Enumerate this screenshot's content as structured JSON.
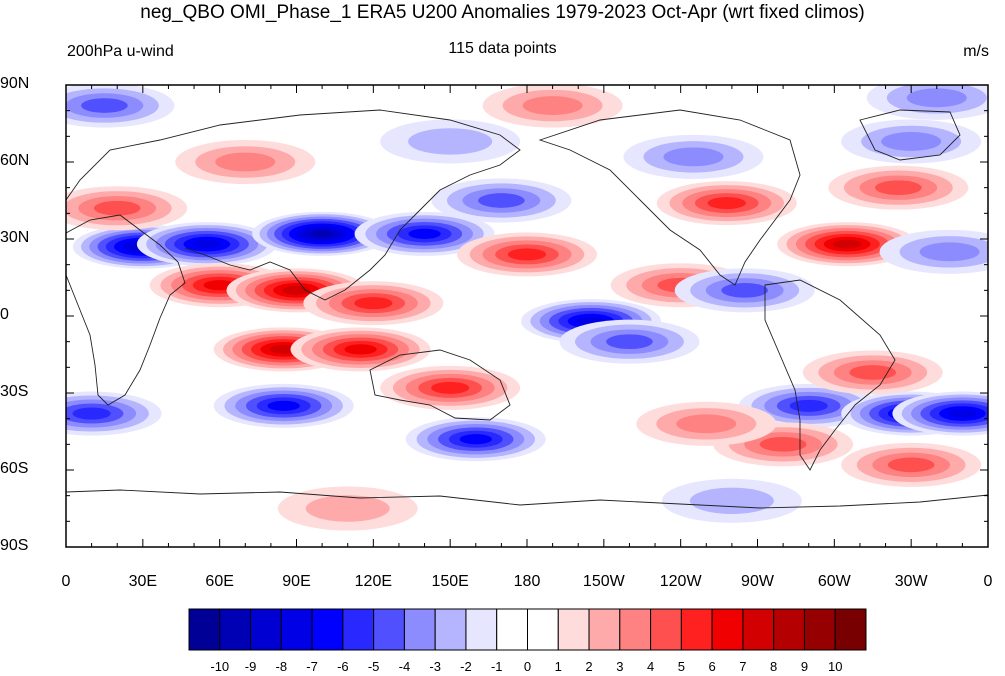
{
  "title": "neg_QBO OMI_Phase_1 ERA5 U200 Anomalies 1979-2023 Oct-Apr (wrt fixed climos)",
  "left_label": "200hPa u-wind",
  "center_label": "115 data points",
  "right_label": "m/s",
  "map": {
    "projection": "cylindrical-equidistant",
    "lon_range": [
      0,
      360
    ],
    "lat_range": [
      -90,
      90
    ],
    "lat_labels": [
      "90N",
      "60N",
      "30N",
      "0",
      "30S",
      "60S",
      "90S"
    ],
    "lon_labels": [
      "0",
      "30E",
      "60E",
      "90E",
      "120E",
      "150E",
      "180",
      "150W",
      "120W",
      "90W",
      "60W",
      "30W",
      "0"
    ],
    "anomaly_features": [
      {
        "lon": 30,
        "lat": 27,
        "value": -8
      },
      {
        "lon": 55,
        "lat": 28,
        "value": -7
      },
      {
        "lon": 100,
        "lat": 32,
        "value": -9
      },
      {
        "lon": 140,
        "lat": 32,
        "value": -6
      },
      {
        "lon": 170,
        "lat": 45,
        "value": -4
      },
      {
        "lon": 60,
        "lat": 12,
        "value": 6
      },
      {
        "lon": 90,
        "lat": 10,
        "value": 7
      },
      {
        "lon": 120,
        "lat": 5,
        "value": 5
      },
      {
        "lon": 85,
        "lat": -13,
        "value": 7
      },
      {
        "lon": 115,
        "lat": -13,
        "value": 6
      },
      {
        "lon": 150,
        "lat": -28,
        "value": 5
      },
      {
        "lon": 180,
        "lat": 24,
        "value": 5
      },
      {
        "lon": 240,
        "lat": 12,
        "value": 4
      },
      {
        "lon": 205,
        "lat": -2,
        "value": -7
      },
      {
        "lon": 220,
        "lat": -10,
        "value": -4
      },
      {
        "lon": 265,
        "lat": 10,
        "value": -4
      },
      {
        "lon": 258,
        "lat": 44,
        "value": 5
      },
      {
        "lon": 305,
        "lat": 28,
        "value": 7
      },
      {
        "lon": 325,
        "lat": 50,
        "value": 4
      },
      {
        "lon": 345,
        "lat": 25,
        "value": -3
      },
      {
        "lon": 85,
        "lat": -35,
        "value": -6
      },
      {
        "lon": 160,
        "lat": -48,
        "value": -6
      },
      {
        "lon": 10,
        "lat": -38,
        "value": -5
      },
      {
        "lon": 290,
        "lat": -35,
        "value": -5
      },
      {
        "lon": 330,
        "lat": -38,
        "value": -7
      },
      {
        "lon": 350,
        "lat": -38,
        "value": -7
      },
      {
        "lon": 315,
        "lat": -22,
        "value": 4
      },
      {
        "lon": 280,
        "lat": -50,
        "value": 4
      },
      {
        "lon": 330,
        "lat": -58,
        "value": 4
      },
      {
        "lon": 250,
        "lat": -42,
        "value": 3
      },
      {
        "lon": 245,
        "lat": 62,
        "value": -3
      },
      {
        "lon": 330,
        "lat": 68,
        "value": -3
      },
      {
        "lon": 20,
        "lat": 42,
        "value": 4
      },
      {
        "lon": 70,
        "lat": 60,
        "value": 3
      },
      {
        "lon": 150,
        "lat": 68,
        "value": -2
      },
      {
        "lon": 15,
        "lat": 82,
        "value": -4
      },
      {
        "lon": 190,
        "lat": 82,
        "value": 3
      },
      {
        "lon": 340,
        "lat": 85,
        "value": -3
      },
      {
        "lon": 260,
        "lat": -72,
        "value": -2
      },
      {
        "lon": 110,
        "lat": -75,
        "value": 2
      }
    ]
  },
  "colorbar": {
    "labels": [
      "-10",
      "-9",
      "-8",
      "-7",
      "-6",
      "-5",
      "-4",
      "-3",
      "-2",
      "-1",
      "0",
      "1",
      "2",
      "3",
      "4",
      "5",
      "6",
      "7",
      "8",
      "9",
      "10"
    ],
    "colors": [
      "#000096",
      "#0000b4",
      "#0000d2",
      "#0000e6",
      "#0000ff",
      "#2828ff",
      "#5050ff",
      "#8c8cff",
      "#b4b4ff",
      "#e6e6ff",
      "#ffffff",
      "#ffffff",
      "#ffdcdc",
      "#ffaaaa",
      "#ff8282",
      "#ff5050",
      "#ff2020",
      "#f00000",
      "#d20000",
      "#b40000",
      "#960000",
      "#780000"
    ]
  }
}
